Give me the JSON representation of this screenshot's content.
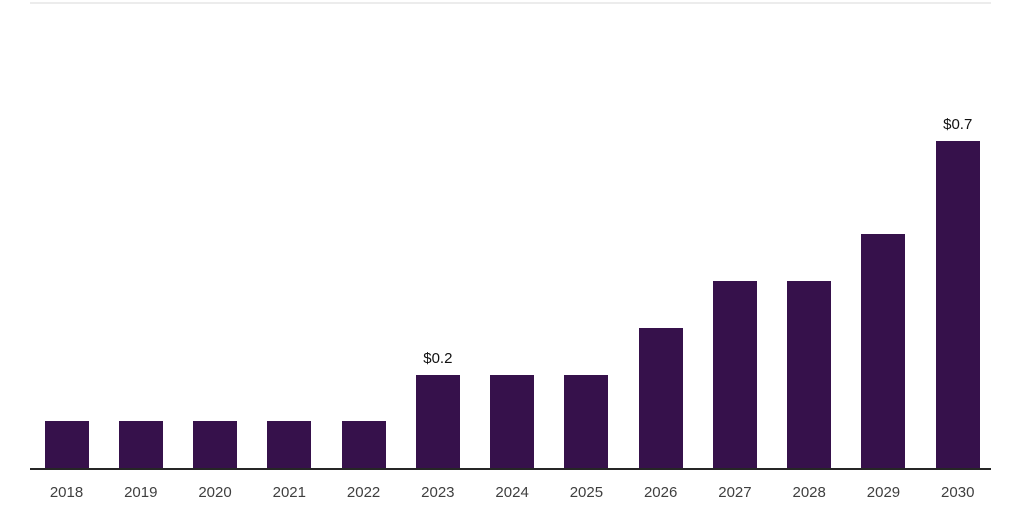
{
  "chart_data": {
    "type": "bar",
    "title": "",
    "xlabel": "",
    "ylabel": "",
    "categories": [
      "2018",
      "2019",
      "2020",
      "2021",
      "2022",
      "2023",
      "2024",
      "2025",
      "2026",
      "2027",
      "2028",
      "2029",
      "2030"
    ],
    "values": [
      0.1,
      0.1,
      0.1,
      0.1,
      0.1,
      0.2,
      0.2,
      0.2,
      0.3,
      0.4,
      0.4,
      0.5,
      0.7
    ],
    "bar_labels": [
      "",
      "",
      "",
      "",
      "",
      "$0.2",
      "",
      "",
      "",
      "",
      "",
      "",
      "$0.7"
    ],
    "ylim": [
      0,
      0.75
    ],
    "grid": false,
    "legend": false,
    "colors": {
      "bar": "#36114B",
      "axis_line": "#262626",
      "plot_top_border": "#ECECEC",
      "tick_label": "#3F3F3F",
      "value_label": "#111111",
      "background": "#FFFFFF"
    }
  }
}
